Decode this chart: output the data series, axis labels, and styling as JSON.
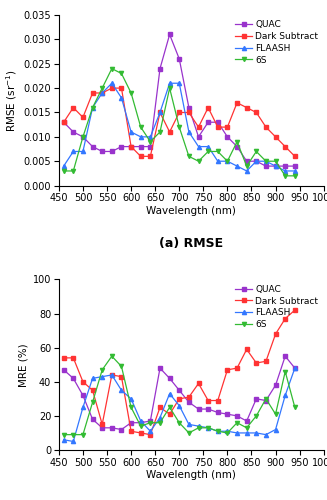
{
  "wavelengths": [
    460,
    480,
    500,
    520,
    540,
    560,
    580,
    600,
    620,
    640,
    660,
    680,
    700,
    720,
    740,
    760,
    780,
    800,
    820,
    840,
    860,
    880,
    900,
    920,
    940
  ],
  "rmse_quac": [
    0.013,
    0.011,
    0.01,
    0.008,
    0.007,
    0.007,
    0.008,
    0.008,
    0.008,
    0.008,
    0.024,
    0.031,
    0.026,
    0.016,
    0.01,
    0.013,
    0.013,
    0.01,
    0.008,
    0.005,
    0.005,
    0.004,
    0.004,
    0.004,
    0.004
  ],
  "rmse_dark": [
    0.013,
    0.016,
    0.014,
    0.019,
    0.019,
    0.02,
    0.02,
    0.008,
    0.006,
    0.006,
    0.015,
    0.011,
    0.015,
    0.015,
    0.012,
    0.016,
    0.012,
    0.012,
    0.017,
    0.016,
    0.015,
    0.012,
    0.01,
    0.008,
    0.006
  ],
  "rmse_flaash": [
    0.004,
    0.007,
    0.007,
    0.016,
    0.019,
    0.021,
    0.018,
    0.011,
    0.01,
    0.01,
    0.015,
    0.021,
    0.021,
    0.011,
    0.008,
    0.008,
    0.005,
    0.005,
    0.004,
    0.003,
    0.005,
    0.005,
    0.004,
    0.003,
    0.003
  ],
  "rmse_6s": [
    0.003,
    0.003,
    0.01,
    0.016,
    0.02,
    0.024,
    0.023,
    0.019,
    0.012,
    0.009,
    0.011,
    0.02,
    0.012,
    0.006,
    0.005,
    0.007,
    0.007,
    0.005,
    0.009,
    0.004,
    0.007,
    0.005,
    0.005,
    0.002,
    0.002
  ],
  "mre_quac": [
    47,
    42,
    32,
    18,
    13,
    13,
    12,
    16,
    16,
    17,
    48,
    42,
    35,
    28,
    24,
    24,
    22,
    21,
    20,
    17,
    30,
    29,
    38,
    55,
    48
  ],
  "mre_dark": [
    54,
    54,
    40,
    35,
    15,
    44,
    43,
    11,
    10,
    9,
    25,
    21,
    30,
    31,
    39,
    29,
    29,
    47,
    48,
    59,
    51,
    52,
    68,
    77,
    82
  ],
  "mre_flaash": [
    6,
    5,
    25,
    42,
    43,
    44,
    35,
    30,
    17,
    11,
    19,
    33,
    26,
    15,
    14,
    13,
    11,
    11,
    10,
    10,
    10,
    9,
    12,
    32,
    48
  ],
  "mre_6s": [
    9,
    9,
    9,
    28,
    47,
    55,
    49,
    25,
    14,
    16,
    16,
    25,
    16,
    10,
    13,
    13,
    11,
    10,
    16,
    13,
    20,
    30,
    21,
    46,
    25
  ],
  "colors": {
    "quac": "#9933cc",
    "dark": "#ff3333",
    "flaash": "#3377ff",
    "6s": "#33bb33"
  },
  "markers": {
    "quac": "s",
    "dark": "s",
    "flaash": "^",
    "6s": "v"
  },
  "rmse_ylabel": "RMSE (sr$^{-1}$)",
  "mre_ylabel": "MRE (%)",
  "xlabel": "Wavelength (nm)",
  "rmse_caption": "(a) RMSE",
  "mre_caption": "(b) MRE",
  "rmse_ylim": [
    0.0,
    0.035
  ],
  "mre_ylim": [
    0,
    100
  ],
  "xlim": [
    450,
    1000
  ]
}
